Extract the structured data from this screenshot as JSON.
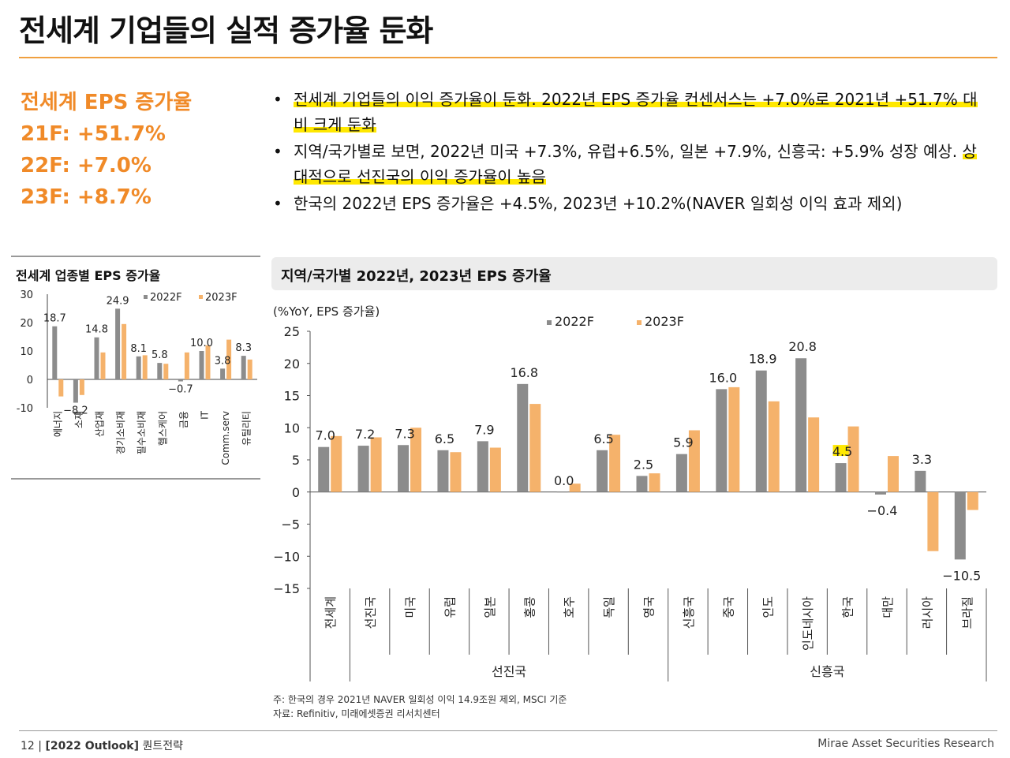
{
  "title": "전세계 기업들의 실적 증가율 둔화",
  "kpi": {
    "heading": "전세계 EPS 증가율",
    "lines": [
      "21F: +51.7%",
      "22F: +7.0%",
      "23F: +8.7%"
    ]
  },
  "bullets": [
    {
      "parts": [
        {
          "text": "전세계 기업들의 이익 증가율이 둔화. 2022년 EPS 증가율 컨센서스는 +7.0%로 2021년 +51.7% 대비 크게 둔화",
          "hl": true
        }
      ]
    },
    {
      "parts": [
        {
          "text": "지역/국가별로 보면, 2022년 미국 +7.3%, 유럽+6.5%, 일본 +7.9%, 신흥국: +5.9% 성장 예상. ",
          "hl": false
        },
        {
          "text": "상대적으로 선진국의 이익 증가율이 높음",
          "hl": true
        }
      ]
    },
    {
      "parts": [
        {
          "text": "한국의 2022년 EPS 증가율은 +4.5%, 2023년 +10.2%(NAVER 일회성 이익 효과 제외)",
          "hl": false
        }
      ]
    }
  ],
  "left_panel": {
    "title": "전세계 업종별 EPS 증가율"
  },
  "right_panel": {
    "title": "지역/국가별 2022년, 2023년 EPS 증가율",
    "unit": "(%YoY, EPS 증가율)"
  },
  "notes": {
    "note1": "주: 한국의 경우 2021년 NAVER 일회성 이익 14.9조원 제외, MSCI 기준",
    "note2": "자료: Refinitiv, 미래에셋증권 리서치센터"
  },
  "footer": {
    "page": "12",
    "doc": "[2022 Outlook]",
    "section": "퀀트전략",
    "brand": "Mirae Asset Securities Research"
  },
  "colors": {
    "accent": "#f08a28",
    "series_2022": "#8c8c8c",
    "series_2023": "#f5b26b",
    "highlight": "#ffe800"
  },
  "chart_data": [
    {
      "type": "bar",
      "title": "전세계 업종별 EPS 증가율",
      "categories": [
        "에너지",
        "소재",
        "산업재",
        "경기소비재",
        "필수소비재",
        "헬스케어",
        "금융",
        "IT",
        "Comm.serv",
        "유틸리티"
      ],
      "series": [
        {
          "name": "2022F",
          "values": [
            18.7,
            -8.2,
            14.8,
            24.9,
            8.1,
            5.8,
            -0.7,
            10.0,
            3.8,
            8.3
          ],
          "labels": [
            "18.7",
            "−8.2",
            "14.8",
            "24.9",
            "8.1",
            "5.8",
            "−0.7",
            "10.0",
            "3.8",
            "8.3"
          ]
        },
        {
          "name": "2023F",
          "values": [
            -6.0,
            -5.5,
            9.5,
            19.5,
            8.5,
            5.5,
            9.5,
            12.0,
            14.0,
            7.0
          ],
          "labels": [
            "",
            "",
            "",
            "",
            "",
            "",
            "",
            "",
            "",
            ""
          ]
        }
      ],
      "ylim": [
        -10,
        30
      ],
      "yticks": [
        30,
        20,
        10,
        0,
        -10
      ],
      "legend": "top-right"
    },
    {
      "type": "bar",
      "title": "지역/국가별 2022년, 2023년 EPS 증가율",
      "ylabel": "(%YoY, EPS 증가율)",
      "categories": [
        "전세계",
        "선진국",
        "미국",
        "유럽",
        "일본",
        "홍콩",
        "호주",
        "독일",
        "영국",
        "신흥국",
        "중국",
        "인도",
        "인도네시아",
        "한국",
        "대만",
        "러시아",
        "브라질"
      ],
      "groups": [
        {
          "label": "선진국",
          "from": 1,
          "to": 8
        },
        {
          "label": "신흥국",
          "from": 9,
          "to": 16
        }
      ],
      "series": [
        {
          "name": "2022F",
          "values": [
            7.0,
            7.2,
            7.3,
            6.5,
            7.9,
            16.8,
            0.0,
            6.5,
            2.5,
            5.9,
            16.0,
            18.9,
            20.8,
            4.5,
            -0.4,
            3.3,
            -10.5
          ],
          "labels": [
            "7.0",
            "7.2",
            "7.3",
            "6.5",
            "7.9",
            "16.8",
            "0.0",
            "6.5",
            "2.5",
            "5.9",
            "16.0",
            "18.9",
            "20.8",
            "4.5",
            "−0.4",
            "3.3",
            "−10.5"
          ]
        },
        {
          "name": "2023F",
          "values": [
            8.7,
            8.5,
            10.0,
            6.2,
            6.9,
            13.7,
            1.3,
            8.9,
            2.9,
            9.6,
            16.3,
            14.1,
            11.6,
            10.2,
            5.6,
            -9.2,
            -2.8
          ],
          "labels": [
            "",
            "",
            "",
            "",
            "",
            "",
            "",
            "",
            "",
            "",
            "",
            "",
            "",
            "",
            "",
            "",
            ""
          ]
        }
      ],
      "highlight_label": "한국",
      "ylim": [
        -15,
        25
      ],
      "yticks": [
        25,
        20,
        15,
        10,
        5,
        0,
        -5,
        -10,
        -15
      ],
      "legend": "top-center"
    }
  ]
}
